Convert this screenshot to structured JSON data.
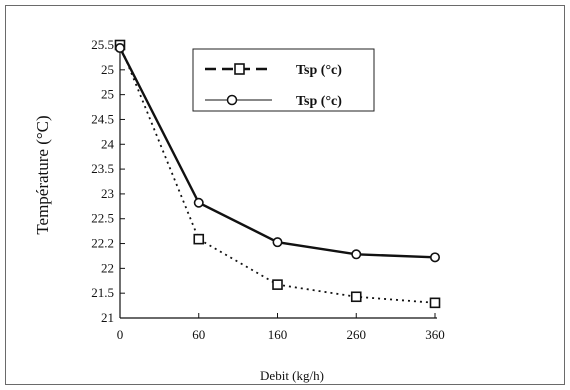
{
  "chart_data": {
    "type": "line",
    "xlabel": "Debit (kg/h)",
    "ylabel": "Température (°C)",
    "categories": [
      "0",
      "60",
      "160",
      "260",
      "360"
    ],
    "y_ticks": [
      "21",
      "21.5",
      "22",
      "22.2",
      "22.5",
      "23",
      "23.5",
      "24",
      "24.5",
      "25",
      "25",
      "25.5"
    ],
    "ylim": [
      21,
      25.5
    ],
    "grid": false,
    "legend_position": "top-center",
    "series": [
      {
        "name": "Tsp (°c)",
        "marker": "square",
        "line_style": "dotted",
        "color": "#111111",
        "values": [
          25.5,
          22.3,
          21.55,
          21.35,
          21.25
        ]
      },
      {
        "name": "Tsp (°c)",
        "marker": "circle",
        "line_style": "solid",
        "color": "#111111",
        "values": [
          25.45,
          22.9,
          22.25,
          22.05,
          22.0
        ]
      }
    ]
  }
}
